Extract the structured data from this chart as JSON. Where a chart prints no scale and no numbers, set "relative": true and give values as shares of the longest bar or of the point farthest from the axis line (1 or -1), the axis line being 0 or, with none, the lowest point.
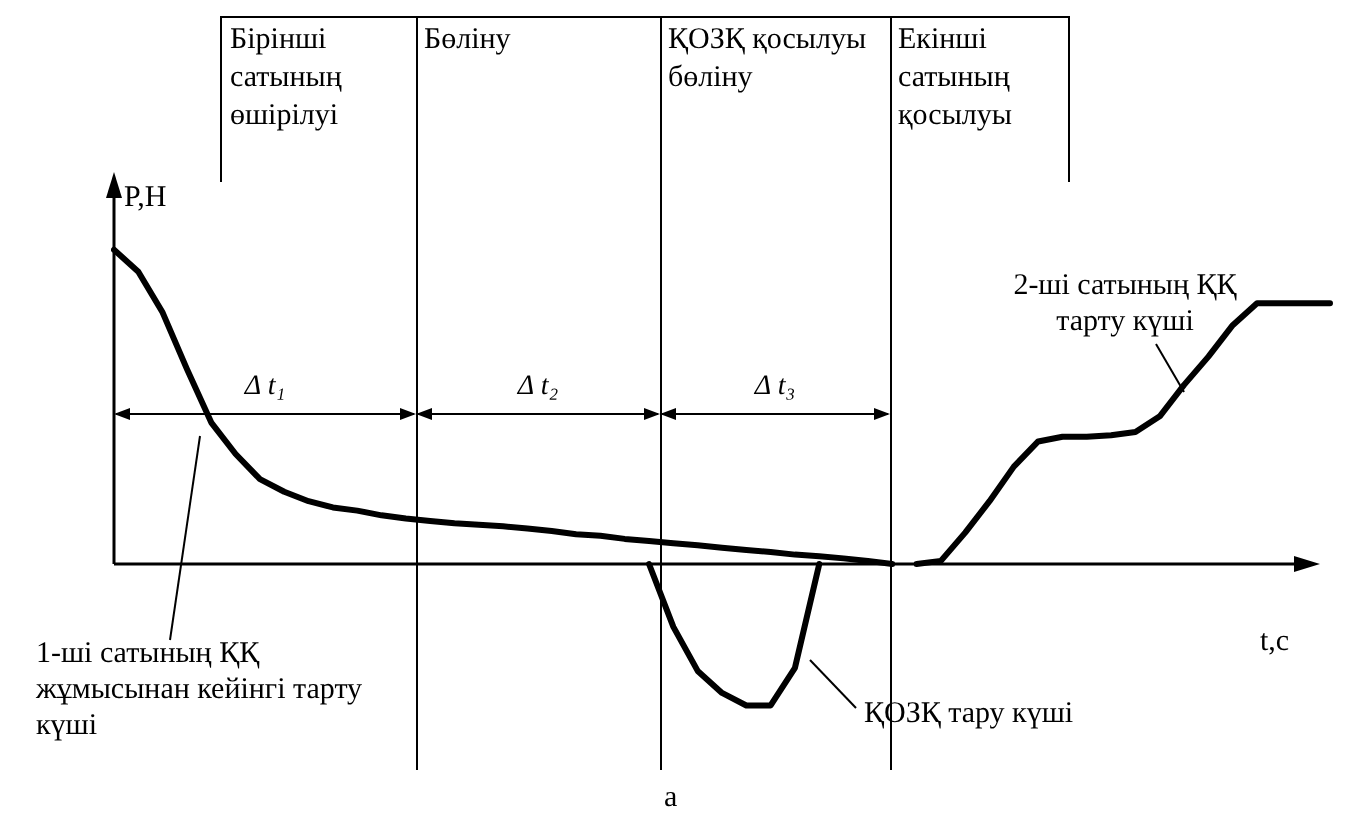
{
  "chart_data": {
    "type": "line",
    "relative": true,
    "xlabel": "t,c",
    "ylabel": "P,H",
    "grid": false,
    "legend": false,
    "marker": "none",
    "line_style": "solid",
    "categories": [
      null,
      null,
      null,
      null,
      null,
      null,
      null,
      null,
      null,
      null,
      null,
      null,
      null,
      null,
      null,
      null,
      null,
      null,
      null,
      null,
      null,
      null,
      null,
      null,
      null,
      null,
      null,
      null,
      null,
      null,
      null,
      null,
      null,
      null,
      null,
      null,
      null,
      null,
      null,
      null,
      null,
      null,
      null,
      null,
      null,
      null,
      null,
      null,
      null,
      null,
      null
    ],
    "series": [
      {
        "color": "#000000",
        "values": [
          1.0,
          0.93,
          0.8,
          0.62,
          0.45,
          0.35,
          0.27,
          0.23,
          0.2,
          0.18,
          0.17,
          0.155,
          0.145,
          0.137,
          0.13,
          0.125,
          0.12,
          0.113,
          0.105,
          0.095,
          0.09,
          0.08,
          0.073,
          0.066,
          0.06,
          0.052,
          0.045,
          0.038,
          0.03,
          0.025,
          0.018,
          0.01,
          0,
          null,
          null,
          null,
          null,
          null,
          null,
          null,
          null,
          null,
          null,
          null,
          null,
          null,
          null,
          null,
          null,
          null,
          null
        ]
      },
      {
        "color": "#000000",
        "values": [
          null,
          null,
          null,
          null,
          null,
          null,
          null,
          null,
          null,
          null,
          null,
          null,
          null,
          null,
          null,
          null,
          null,
          null,
          null,
          null,
          null,
          null,
          0,
          -0.2,
          -0.34,
          -0.41,
          -0.45,
          -0.45,
          -0.33,
          0,
          null,
          null,
          null,
          null,
          null,
          null,
          null,
          null,
          null,
          null,
          null,
          null,
          null,
          null,
          null,
          null,
          null,
          null,
          null,
          null,
          null
        ]
      },
      {
        "color": "#000000",
        "values": [
          null,
          null,
          null,
          null,
          null,
          null,
          null,
          null,
          null,
          null,
          null,
          null,
          null,
          null,
          null,
          null,
          null,
          null,
          null,
          null,
          null,
          null,
          null,
          null,
          null,
          null,
          null,
          null,
          null,
          null,
          null,
          null,
          null,
          0,
          0.01,
          0.1,
          0.2,
          0.31,
          0.39,
          0.405,
          0.405,
          0.41,
          0.42,
          0.47,
          0.57,
          0.66,
          0.76,
          0.83,
          0.83,
          0.83,
          0.83
        ]
      }
    ],
    "annotations": [
      "Бірінші сатының өшірілуі",
      "Бөліну",
      "ҚОЗҚ қосылуы бөліну",
      "Екінші сатының қосылуы",
      "Δ t₁",
      "Δ t₂",
      "Δ t₃",
      "1-ші сатының ҚҚ жұмысынан кейінгі тарту күші",
      "ҚОЗҚ тару күші",
      "2-ші сатының ҚҚ тарту күші",
      "а"
    ]
  }
}
